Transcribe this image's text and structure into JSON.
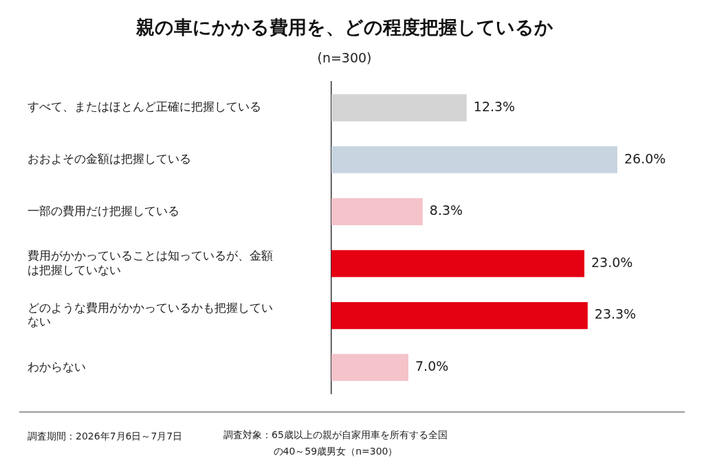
{
  "chart_data": {
    "type": "bar",
    "orientation": "horizontal",
    "title": "親の車にかかる費用を、どの程度把握しているか",
    "subtitle": "(n=300)",
    "categories": [
      "すべて、またはほとんど正確に把握している",
      "おおよその金額は把握している",
      "一部の費用だけ把握している",
      "費用がかかっていることは知っているが、金額は把握していない",
      "どのような費用がかかっているかも把握していない",
      "わからない"
    ],
    "values": [
      12.3,
      26.0,
      8.3,
      23.0,
      23.3,
      7.0
    ],
    "value_labels": [
      "12.3%",
      "26.0%",
      "8.3%",
      "23.0%",
      "23.3%",
      "7.0%"
    ],
    "colors": [
      "#d4d4d4",
      "#c8d5e0",
      "#f5c3ca",
      "#e50012",
      "#e50012",
      "#f5c3ca"
    ],
    "tick_labels": "y",
    "grid": false,
    "legend": false,
    "annotations": [
      "調査期間：2026年7月6日～7月7日",
      "調査対象：65歳以上の親が自家用車を所有する全国の40～59歳男女（n=300）"
    ]
  }
}
